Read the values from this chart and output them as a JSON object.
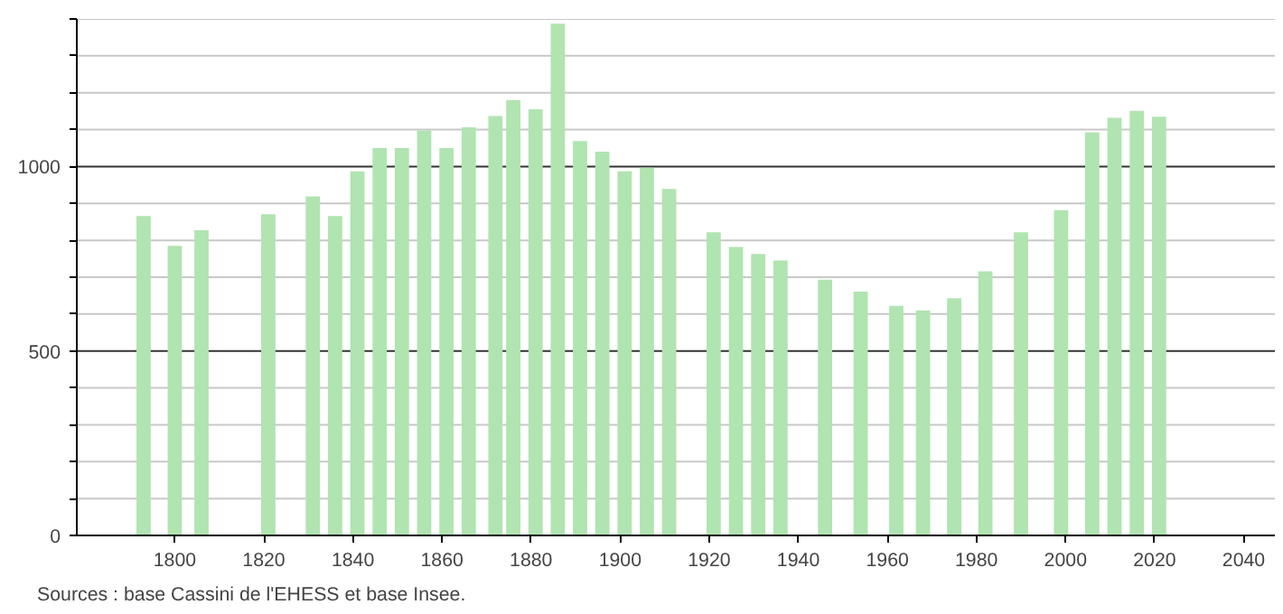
{
  "chart_data": {
    "type": "bar",
    "x": [
      1793,
      1800,
      1806,
      1821,
      1831,
      1836,
      1841,
      1846,
      1851,
      1856,
      1861,
      1866,
      1872,
      1876,
      1881,
      1886,
      1891,
      1896,
      1901,
      1906,
      1911,
      1921,
      1926,
      1931,
      1936,
      1946,
      1954,
      1962,
      1968,
      1975,
      1982,
      1990,
      1999,
      2006,
      2011,
      2016,
      2021
    ],
    "values": [
      866,
      785,
      827,
      871,
      919,
      866,
      987,
      1050,
      1050,
      1098,
      1050,
      1106,
      1137,
      1180,
      1155,
      1387,
      1069,
      1040,
      987,
      997,
      939,
      822,
      782,
      763,
      745,
      693,
      661,
      622,
      610,
      643,
      716,
      822,
      882,
      1093,
      1132,
      1151,
      1135
    ],
    "color": "#b0e4b0",
    "xlim": [
      1778,
      2047
    ],
    "ylim": [
      0,
      1400
    ],
    "xticks": [
      1800,
      1820,
      1840,
      1860,
      1880,
      1900,
      1920,
      1940,
      1960,
      1980,
      2000,
      2020,
      2040
    ],
    "yticks": [
      0,
      {
        "value": 100,
        "label": null
      },
      {
        "value": 200,
        "label": null
      },
      {
        "value": 300,
        "label": null
      },
      {
        "value": 400,
        "label": null
      },
      500,
      {
        "value": 600,
        "label": null
      },
      {
        "value": 700,
        "label": null
      },
      {
        "value": 800,
        "label": null
      },
      {
        "value": 900,
        "label": null
      },
      1000,
      {
        "value": 1100,
        "label": null
      },
      {
        "value": 1200,
        "label": null
      },
      {
        "value": 1300,
        "label": null
      },
      {
        "value": 1400,
        "label": null
      }
    ],
    "grid": "y",
    "annotations": [
      "Sources : base Cassini de l'EHESS et base Insee."
    ]
  }
}
